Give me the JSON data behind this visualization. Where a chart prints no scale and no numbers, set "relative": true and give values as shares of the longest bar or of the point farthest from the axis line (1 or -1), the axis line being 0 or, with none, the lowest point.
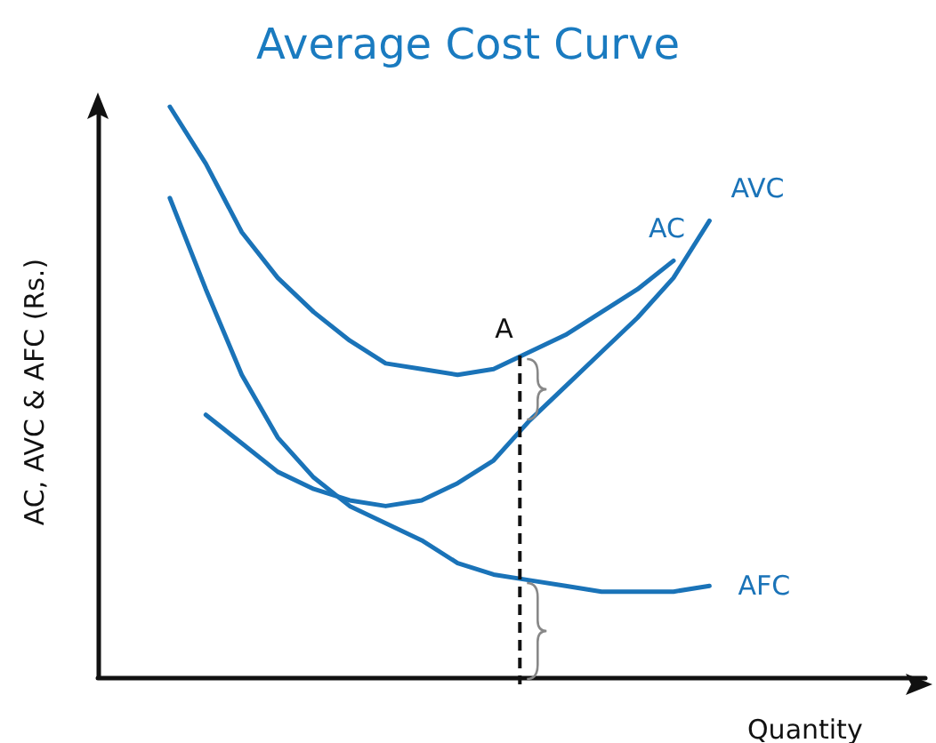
{
  "chart_data": {
    "type": "line",
    "title": "Average Cost Curve",
    "xlabel": "Quantity",
    "ylabel": "AC, AVC & AFC (Rs.)",
    "relative": true,
    "legend": false,
    "grid": false,
    "marker": "none",
    "line_style": "solid",
    "categories": [
      null,
      null,
      null,
      null,
      null,
      null,
      null,
      null,
      null,
      null,
      null,
      null,
      null,
      null,
      null,
      null,
      null,
      null,
      null,
      null,
      null,
      null,
      null,
      null
    ],
    "series": [
      {
        "name": "AC",
        "color": "#1a73b8",
        "values": [
          null,
          null,
          1,
          0.9,
          0.78,
          0.7,
          0.64,
          0.59,
          0.55,
          0.54,
          0.53,
          0.54,
          0.57,
          0.6,
          0.64,
          0.68,
          0.73,
          null,
          null,
          null,
          null,
          null,
          null,
          null
        ]
      },
      {
        "name": "AVC",
        "color": "#1a73b8",
        "values": [
          null,
          null,
          null,
          0.46,
          0.41,
          0.36,
          0.33,
          0.31,
          0.3,
          0.31,
          0.34,
          0.38,
          0.45,
          0.51,
          0.57,
          0.63,
          0.7,
          0.8,
          null,
          null,
          null,
          null,
          null,
          null
        ]
      },
      {
        "name": "AFC",
        "color": "#1a73b8",
        "values": [
          null,
          null,
          0.84,
          0.68,
          0.53,
          0.42,
          0.35,
          0.3,
          0.27,
          0.24,
          0.2,
          0.18,
          0.17,
          0.16,
          0.15,
          0.15,
          0.15,
          0.16,
          null,
          null,
          null,
          null,
          null,
          null
        ]
      }
    ],
    "annotations": [
      "A"
    ]
  }
}
